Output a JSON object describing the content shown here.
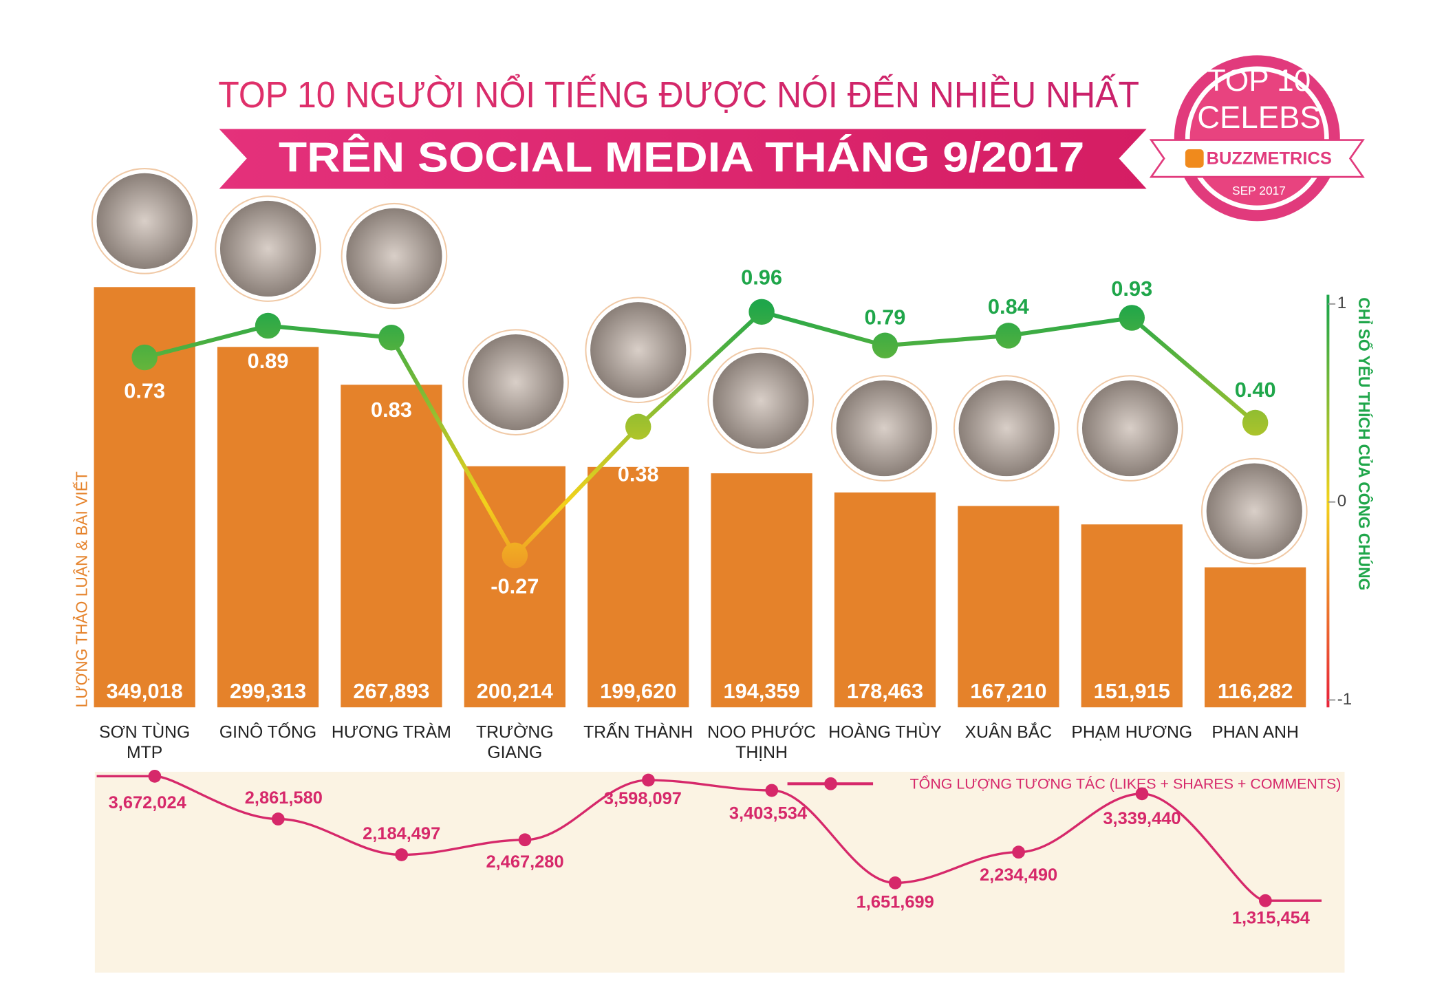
{
  "badge": {
    "line1": "TOP 10",
    "line2": "CELEBS",
    "brand": "BUZZMETRICS",
    "date": "SEP 2017"
  },
  "chart_data": [
    {
      "type": "bar",
      "title": "TOP 10 NGƯỜI NỔI TIẾNG ĐƯỢC NÓI ĐẾN NHIỀU NHẤT",
      "subtitle": "TRÊN SOCIAL MEDIA THÁNG 9/2017",
      "categories": [
        "SƠN TÙNG MTP",
        "GINÔ TỐNG",
        "HƯƠNG TRÀM",
        "TRƯỜNG GIANG",
        "TRẤN THÀNH",
        "NOO PHƯỚC THỊNH",
        "HOÀNG THÙY",
        "XUÂN BẮC",
        "PHẠM HƯƠNG",
        "PHAN ANH"
      ],
      "y_label": "LƯỢNG THẢO LUẬN & BÀI VIẾT",
      "y2_label": "CHỈ SỐ YÊU THÍCH CỦA CÔNG CHÚNG",
      "ylim": [
        0,
        400000
      ],
      "y2lim": [
        -1,
        1
      ],
      "y2ticks": [
        1,
        0,
        -1
      ],
      "series": [
        {
          "type": "bar",
          "color": "#e5822a",
          "values": [
            349018,
            299313,
            267893,
            200214,
            199620,
            194359,
            178463,
            167210,
            151915,
            116282
          ],
          "value_labels": [
            "349,018",
            "299,313",
            "267,893",
            "200,214",
            "199,620",
            "194,359",
            "178,463",
            "167,210",
            "151,915",
            "116,282"
          ]
        },
        {
          "type": "line",
          "axis": "y2",
          "color_scale": [
            "#e8273a",
            "#f2d21c",
            "#1fa64a"
          ],
          "values": [
            0.73,
            0.89,
            0.83,
            -0.27,
            0.38,
            0.96,
            0.79,
            0.84,
            0.93,
            0.4
          ],
          "value_labels": [
            "0.73",
            "0.89",
            "0.83",
            "-0.27",
            "0.38",
            "0.96",
            "0.79",
            "0.84",
            "0.93",
            "0.40"
          ]
        }
      ]
    },
    {
      "type": "line",
      "ylim": [
        1000000,
        4000000
      ],
      "series": [
        {
          "name": "TỔNG LƯỢNG TƯƠNG TÁC (LIKES + SHARES + COMMENTS)",
          "color": "#d6286a",
          "values": [
            3672024,
            2861580,
            2184497,
            2467280,
            3598097,
            3403534,
            1651699,
            2234490,
            3339440,
            1315454
          ],
          "value_labels": [
            "3,672,024",
            "2,861,580",
            "2,184,497",
            "2,467,280",
            "3,598,097",
            "3,403,534",
            "1,651,699",
            "2,234,490",
            "3,339,440",
            "1,315,454"
          ]
        }
      ]
    }
  ]
}
